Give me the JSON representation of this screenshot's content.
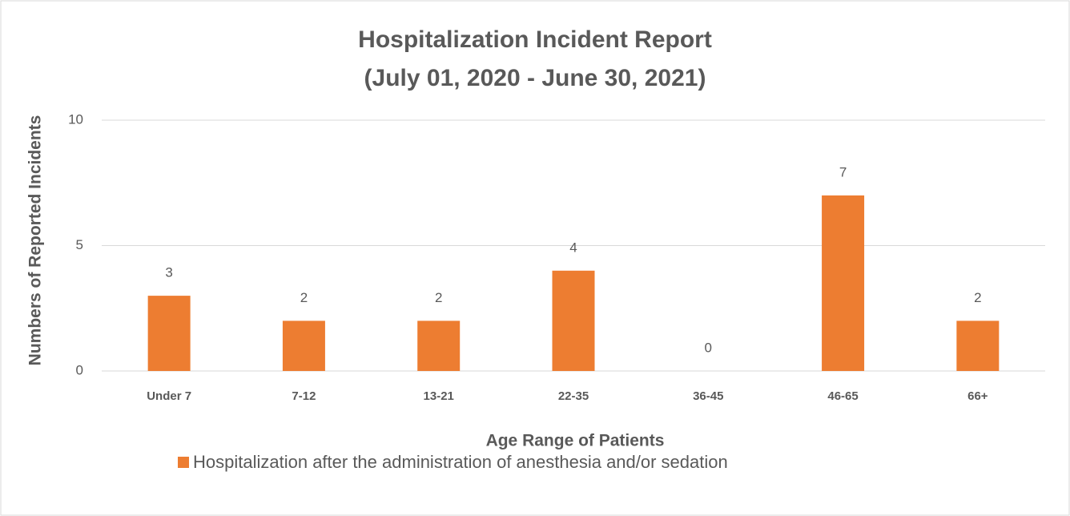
{
  "chart_data": {
    "type": "bar",
    "title": "Hospitalization Incident Report",
    "subtitle": "(July 01, 2020 - June 30, 2021)",
    "x_label": "Age Range of Patients",
    "y_label": "Numbers of Reported Incidents",
    "categories": [
      "Under 7",
      "7-12",
      "13-21",
      "22-35",
      "36-45",
      "46-65",
      "66+"
    ],
    "series": [
      {
        "name": "Hospitalization after the administration of anesthesia and/or sedation",
        "color": "#ed7d31",
        "values": [
          3,
          2,
          2,
          4,
          0,
          7,
          2
        ]
      }
    ],
    "ylim": [
      0,
      10
    ],
    "yticks": [
      0,
      5,
      10
    ],
    "grid": true,
    "legend": "bottom"
  }
}
